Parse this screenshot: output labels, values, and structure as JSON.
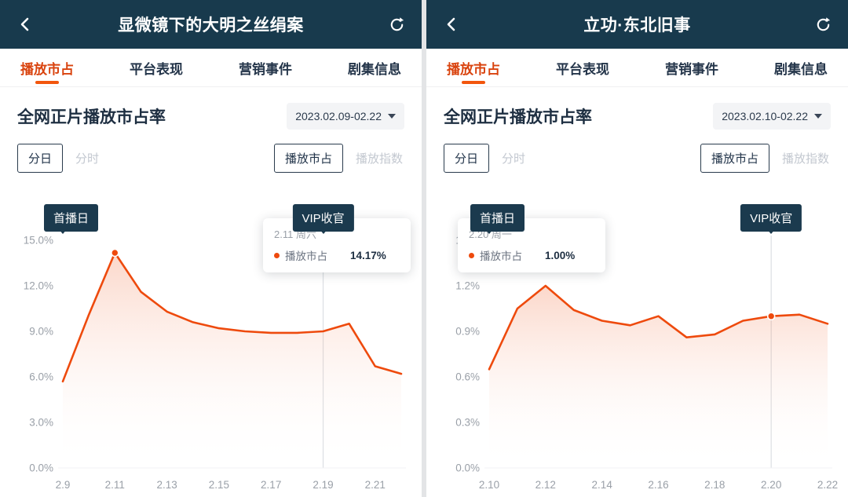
{
  "accent": "#d9430e",
  "header_bg": "#183a4d",
  "panels": [
    {
      "header": {
        "title": "显微镜下的大明之丝绢案"
      },
      "tabs": [
        {
          "label": "播放市占",
          "active": true
        },
        {
          "label": "平台表现",
          "active": false
        },
        {
          "label": "营销事件",
          "active": false
        },
        {
          "label": "剧集信息",
          "active": false
        }
      ],
      "section": {
        "title": "全网正片播放市占率",
        "date_range": "2023.02.09-02.22"
      },
      "granularity": {
        "options": [
          "分日",
          "分时"
        ],
        "selected": "分日"
      },
      "metric": {
        "options": [
          "播放市占",
          "播放指数"
        ],
        "selected": "播放市占"
      },
      "badges": {
        "premiere": "首播日",
        "finale": "VIP收官"
      },
      "tooltip": {
        "date": "2.11 周六",
        "series": "播放市占",
        "value": "14.17%"
      },
      "chart_data": {
        "type": "line",
        "series_name": "播放市占",
        "x": [
          "2.9",
          "2.10",
          "2.11",
          "2.12",
          "2.13",
          "2.14",
          "2.15",
          "2.16",
          "2.17",
          "2.18",
          "2.19",
          "2.20",
          "2.21",
          "2.22"
        ],
        "values": [
          5.7,
          10.1,
          14.17,
          11.6,
          10.3,
          9.6,
          9.2,
          9.0,
          8.9,
          8.9,
          9.0,
          9.5,
          6.7,
          6.2
        ],
        "ylim": [
          0,
          15
        ],
        "yticks": [
          {
            "label": "15.0%",
            "value": 15
          },
          {
            "label": "12.0%",
            "value": 12
          },
          {
            "label": "9.0%",
            "value": 9
          },
          {
            "label": "6.0%",
            "value": 6
          },
          {
            "label": "3.0%",
            "value": 3
          },
          {
            "label": "0.0%",
            "value": 0
          }
        ],
        "xtick_indices": [
          0,
          2,
          4,
          6,
          8,
          10,
          12
        ],
        "line_color": "#ee4a0d",
        "marker_index": 2,
        "premiere_index": 0,
        "finale_index": 10
      }
    },
    {
      "header": {
        "title": "立功·东北旧事"
      },
      "tabs": [
        {
          "label": "播放市占",
          "active": true
        },
        {
          "label": "平台表现",
          "active": false
        },
        {
          "label": "营销事件",
          "active": false
        },
        {
          "label": "剧集信息",
          "active": false
        }
      ],
      "section": {
        "title": "全网正片播放市占率",
        "date_range": "2023.02.10-02.22"
      },
      "granularity": {
        "options": [
          "分日",
          "分时"
        ],
        "selected": "分日"
      },
      "metric": {
        "options": [
          "播放市占",
          "播放指数"
        ],
        "selected": "播放市占"
      },
      "badges": {
        "premiere": "首播日",
        "finale": "VIP收官"
      },
      "tooltip": {
        "date": "2.20 周一",
        "series": "播放市占",
        "value": "1.00%"
      },
      "chart_data": {
        "type": "line",
        "series_name": "播放市占",
        "x": [
          "2.10",
          "2.11",
          "2.12",
          "2.13",
          "2.14",
          "2.15",
          "2.16",
          "2.17",
          "2.18",
          "2.19",
          "2.20",
          "2.21",
          "2.22"
        ],
        "values": [
          0.65,
          1.05,
          1.2,
          1.04,
          0.97,
          0.94,
          1.0,
          0.86,
          0.88,
          0.97,
          1.0,
          1.01,
          0.95
        ],
        "ylim": [
          0,
          1.5
        ],
        "yticks": [
          {
            "label": "1.5%",
            "value": 1.5
          },
          {
            "label": "1.2%",
            "value": 1.2
          },
          {
            "label": "0.9%",
            "value": 0.9
          },
          {
            "label": "0.6%",
            "value": 0.6
          },
          {
            "label": "0.3%",
            "value": 0.3
          },
          {
            "label": "0.0%",
            "value": 0
          }
        ],
        "xtick_indices": [
          0,
          2,
          4,
          6,
          8,
          10,
          12
        ],
        "line_color": "#ee4a0d",
        "marker_index": 10,
        "premiere_index": 0,
        "finale_index": 10
      }
    }
  ]
}
